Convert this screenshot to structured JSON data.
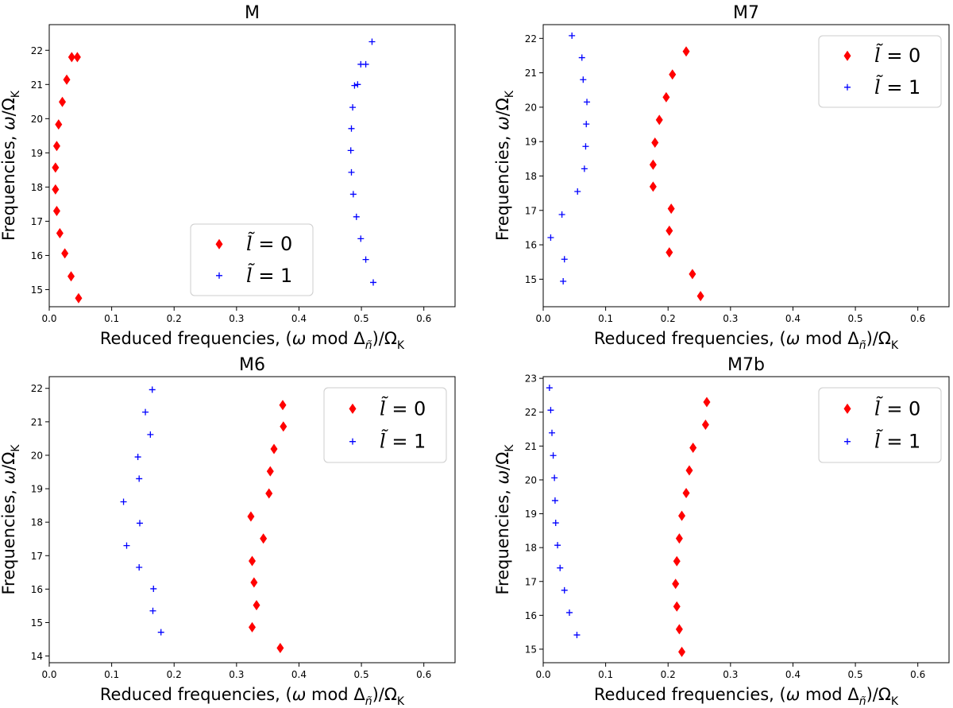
{
  "chart_data": [
    {
      "type": "scatter",
      "title": "M",
      "xlabel": "Reduced frequencies, (ω mod Δñ)/ΩK",
      "ylabel": "Frequencies, ω/ΩK",
      "xlim": [
        0,
        0.65
      ],
      "ylim": [
        14.5,
        22.75
      ],
      "xticks": [
        "0.0",
        "0.1",
        "0.2",
        "0.3",
        "0.4",
        "0.5",
        "0.6"
      ],
      "yticks": [
        15,
        16,
        17,
        18,
        19,
        20,
        21,
        22
      ],
      "legend_position": "lower-center",
      "series": [
        {
          "name": "l̃ = 0",
          "marker": "diamond",
          "color": "#ff0000",
          "x": [
            0.047,
            0.035,
            0.025,
            0.017,
            0.012,
            0.01,
            0.01,
            0.012,
            0.015,
            0.021,
            0.028,
            0.036,
            0.045
          ],
          "y": [
            14.75,
            15.39,
            16.06,
            16.65,
            17.3,
            17.93,
            18.57,
            19.2,
            19.83,
            20.49,
            21.14,
            21.8,
            21.8
          ]
        },
        {
          "name": "l̃ = 1",
          "marker": "plus",
          "color": "#0000ff",
          "x": [
            0.519,
            0.507,
            0.499,
            0.492,
            0.487,
            0.484,
            0.483,
            0.484,
            0.486,
            0.489,
            0.494,
            0.499,
            0.507,
            0.517
          ],
          "y": [
            15.21,
            15.88,
            16.49,
            17.13,
            17.79,
            18.43,
            19.07,
            19.71,
            20.33,
            20.97,
            21.0,
            21.59,
            21.59,
            22.25
          ]
        }
      ]
    },
    {
      "type": "scatter",
      "title": "M7",
      "xlabel": "Reduced frequencies, (ω mod Δñ)/ΩK",
      "ylabel": "Frequencies, ω/ΩK",
      "xlim": [
        0,
        0.65
      ],
      "ylim": [
        14.2,
        22.4
      ],
      "xticks": [
        "0.0",
        "0.1",
        "0.2",
        "0.3",
        "0.4",
        "0.5",
        "0.6"
      ],
      "yticks": [
        15,
        16,
        17,
        18,
        19,
        20,
        21,
        22
      ],
      "legend_position": "top-right",
      "series": [
        {
          "name": "l̃ = 0",
          "marker": "diamond",
          "color": "#ff0000",
          "x": [
            0.252,
            0.239,
            0.202,
            0.202,
            0.205,
            0.176,
            0.176,
            0.179,
            0.186,
            0.197,
            0.207,
            0.229
          ],
          "y": [
            14.51,
            15.15,
            15.78,
            16.41,
            17.05,
            17.69,
            18.33,
            18.97,
            19.63,
            20.29,
            20.95,
            21.62
          ]
        },
        {
          "name": "l̃ = 1",
          "marker": "plus",
          "color": "#0000ff",
          "x": [
            0.032,
            0.034,
            0.012,
            0.03,
            0.055,
            0.066,
            0.068,
            0.069,
            0.07,
            0.064,
            0.062,
            0.046
          ],
          "y": [
            14.94,
            15.58,
            16.21,
            16.88,
            17.55,
            18.21,
            18.86,
            19.51,
            20.15,
            20.8,
            21.44,
            22.08
          ]
        }
      ]
    },
    {
      "type": "scatter",
      "title": "M6",
      "xlabel": "Reduced frequencies, (ω mod Δñ)/ΩK",
      "ylabel": "Frequencies, ω/ΩK",
      "xlim": [
        0,
        0.65
      ],
      "ylim": [
        13.8,
        22.35
      ],
      "xticks": [
        "0.0",
        "0.1",
        "0.2",
        "0.3",
        "0.4",
        "0.5",
        "0.6"
      ],
      "yticks": [
        14,
        15,
        16,
        17,
        18,
        19,
        20,
        21,
        22
      ],
      "legend_position": "top-right",
      "series": [
        {
          "name": "l̃ = 0",
          "marker": "diamond",
          "color": "#ff0000",
          "x": [
            0.37,
            0.325,
            0.332,
            0.328,
            0.325,
            0.343,
            0.323,
            0.352,
            0.354,
            0.36,
            0.375,
            0.374
          ],
          "y": [
            14.24,
            14.86,
            15.52,
            16.2,
            16.84,
            17.51,
            18.17,
            18.86,
            19.52,
            20.19,
            20.86,
            21.5
          ]
        },
        {
          "name": "l̃ = 1",
          "marker": "plus",
          "color": "#0000ff",
          "x": [
            0.179,
            0.166,
            0.167,
            0.144,
            0.124,
            0.145,
            0.119,
            0.144,
            0.142,
            0.162,
            0.154,
            0.165
          ],
          "y": [
            14.71,
            15.35,
            16.01,
            16.65,
            17.3,
            17.97,
            18.61,
            19.3,
            19.95,
            20.62,
            21.29,
            21.96
          ]
        }
      ]
    },
    {
      "type": "scatter",
      "title": "M7b",
      "xlabel": "Reduced frequencies, (ω mod Δñ)/ΩK",
      "ylabel": "Frequencies, ω/ΩK",
      "xlim": [
        0,
        0.65
      ],
      "ylim": [
        14.6,
        23.05
      ],
      "xticks": [
        "0.0",
        "0.1",
        "0.2",
        "0.3",
        "0.4",
        "0.5",
        "0.6"
      ],
      "yticks": [
        15,
        16,
        17,
        18,
        19,
        20,
        21,
        22,
        23
      ],
      "legend_position": "top-right",
      "series": [
        {
          "name": "l̃ = 0",
          "marker": "diamond",
          "color": "#ff0000",
          "x": [
            0.222,
            0.218,
            0.214,
            0.212,
            0.214,
            0.218,
            0.222,
            0.229,
            0.234,
            0.24,
            0.26,
            0.262
          ],
          "y": [
            14.92,
            15.59,
            16.26,
            16.93,
            17.6,
            18.27,
            18.94,
            19.61,
            20.28,
            20.95,
            21.63,
            22.3
          ]
        },
        {
          "name": "l̃ = 1",
          "marker": "plus",
          "color": "#0000ff",
          "x": [
            0.054,
            0.042,
            0.034,
            0.027,
            0.023,
            0.02,
            0.019,
            0.018,
            0.016,
            0.014,
            0.012,
            0.01
          ],
          "y": [
            15.42,
            16.08,
            16.74,
            17.4,
            18.07,
            18.73,
            19.39,
            20.06,
            20.72,
            21.39,
            22.06,
            22.72
          ]
        }
      ]
    }
  ]
}
